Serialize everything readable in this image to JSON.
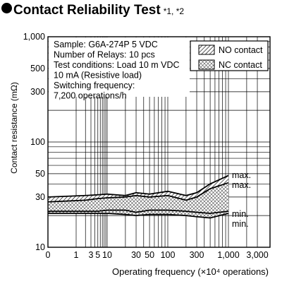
{
  "title": "Contact Reliability Test",
  "title_note": "*1, *2",
  "chart_data": {
    "type": "area",
    "title": "Contact Reliability Test",
    "xlabel": "Operating frequency (×10⁴ operations)",
    "ylabel": "Contact resistance (mΩ)",
    "xscale": "log",
    "yscale": "log",
    "xlim": [
      0,
      3000
    ],
    "ylim": [
      10,
      1000
    ],
    "x_ticks": [
      {
        "v": 0,
        "label": "0"
      },
      {
        "v": 1,
        "label": "1"
      },
      {
        "v": 3,
        "label": "3"
      },
      {
        "v": 5,
        "label": "5"
      },
      {
        "v": 10,
        "label": "10"
      },
      {
        "v": 30,
        "label": "30"
      },
      {
        "v": 50,
        "label": "50"
      },
      {
        "v": 100,
        "label": "100"
      },
      {
        "v": 300,
        "label": "300"
      },
      {
        "v": 1000,
        "label": "1,000"
      },
      {
        "v": 3000,
        "label": "3,000"
      }
    ],
    "y_ticks": [
      {
        "v": 10,
        "label": "10"
      },
      {
        "v": 30,
        "label": "30"
      },
      {
        "v": 50,
        "label": "50"
      },
      {
        "v": 100,
        "label": "100"
      },
      {
        "v": 300,
        "label": "300"
      },
      {
        "v": 500,
        "label": "500"
      },
      {
        "v": 1000,
        "label": "1,000"
      }
    ],
    "grid": true,
    "conditions": [
      "Sample: G6A-274P  5 VDC",
      "Number of Relays: 10 pcs",
      "Test conditions: Load 10 m VDC",
      "10 mA (Resistive load)",
      "Switching frequency:",
      "7,200 operations/h"
    ],
    "legend": {
      "position": "top-right",
      "items": [
        {
          "label": "NO contact",
          "pattern": "diagonal-hatch"
        },
        {
          "label": "NC contact",
          "pattern": "cross-hatch"
        }
      ]
    },
    "series": [
      {
        "name": "NO contact",
        "x": [
          0,
          2,
          5,
          10,
          20,
          30,
          50,
          100,
          200,
          300,
          500,
          1000
        ],
        "max": [
          30,
          31,
          31.5,
          32,
          31,
          33,
          32,
          34,
          31,
          33,
          40,
          48
        ],
        "min": [
          22,
          22,
          22,
          22.5,
          22.5,
          21.5,
          22.5,
          22.5,
          22,
          21.5,
          21,
          22
        ]
      },
      {
        "name": "NC contact",
        "x": [
          0,
          2,
          5,
          10,
          20,
          30,
          50,
          100,
          200,
          300,
          500,
          1000
        ],
        "max": [
          27,
          28,
          29,
          29.5,
          30,
          31,
          30,
          31,
          28,
          30,
          36,
          41
        ],
        "min": [
          21,
          21,
          21,
          21,
          20.5,
          20,
          20.5,
          20.5,
          20,
          19.5,
          19,
          21
        ]
      }
    ],
    "annotations": [
      "max.",
      "max.",
      "min.",
      "min."
    ]
  }
}
